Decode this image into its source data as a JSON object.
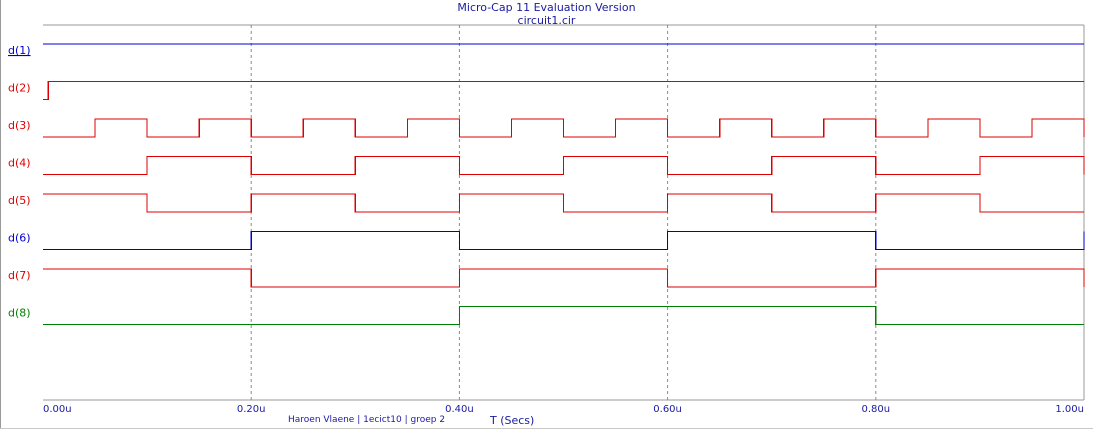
{
  "window": {
    "title": "Micro-Cap 11 Evaluation Version",
    "subtitle": "circuit1.cir"
  },
  "footer_note": "Haroen Vlaene | 1ecict10 | groep 2",
  "chart_data": {
    "type": "line",
    "subtype": "digital-timing",
    "xlabel": "T (Secs)",
    "xlim": [
      0,
      1.0
    ],
    "x_unit": "u",
    "x_ticks": [
      0,
      0.2,
      0.4,
      0.6,
      0.8,
      1.0
    ],
    "x_tick_labels": [
      "0.00u",
      "0.20u",
      "0.40u",
      "0.60u",
      "0.80u",
      "1.00u"
    ],
    "grid": "vertical dashed at x ticks",
    "series": [
      {
        "name": "d(1)",
        "color": "#0000cc",
        "underlined": true,
        "initial": 1,
        "transitions": [],
        "end": 1
      },
      {
        "name": "d(2)",
        "color": "#dd0000",
        "initial": 0,
        "transitions": [
          0.005
        ],
        "end": 1
      },
      {
        "name": "d(3)",
        "color": "#dd0000",
        "initial": 0,
        "transitions": [
          0.05,
          0.1,
          0.15,
          0.2,
          0.25,
          0.3,
          0.35,
          0.4,
          0.45,
          0.5,
          0.55,
          0.6,
          0.65,
          0.7,
          0.75,
          0.8,
          0.85,
          0.9,
          0.95,
          1.0
        ],
        "end": 1
      },
      {
        "name": "d(4)",
        "color": "#dd0000",
        "initial": 0,
        "transitions": [
          0.1,
          0.2,
          0.3,
          0.4,
          0.5,
          0.6,
          0.7,
          0.8,
          0.9,
          1.0
        ],
        "end": 1
      },
      {
        "name": "d(5)",
        "color": "#dd0000",
        "initial": 1,
        "transitions": [
          0.1,
          0.2,
          0.3,
          0.4,
          0.5,
          0.6,
          0.7,
          0.8,
          0.9
        ],
        "end": 0
      },
      {
        "name": "d(6)",
        "color": "#0000cc",
        "initial": 0,
        "transitions": [
          0.2,
          0.4,
          0.6,
          0.8,
          1.0
        ],
        "end": 1
      },
      {
        "name": "d(7)",
        "color": "#dd0000",
        "initial": 1,
        "transitions": [
          0.2,
          0.4,
          0.6,
          0.8,
          1.0
        ],
        "end": 0
      },
      {
        "name": "d(8)",
        "color": "#008000",
        "initial": 0,
        "transitions": [
          0.4,
          0.8
        ],
        "end": 0
      }
    ]
  }
}
